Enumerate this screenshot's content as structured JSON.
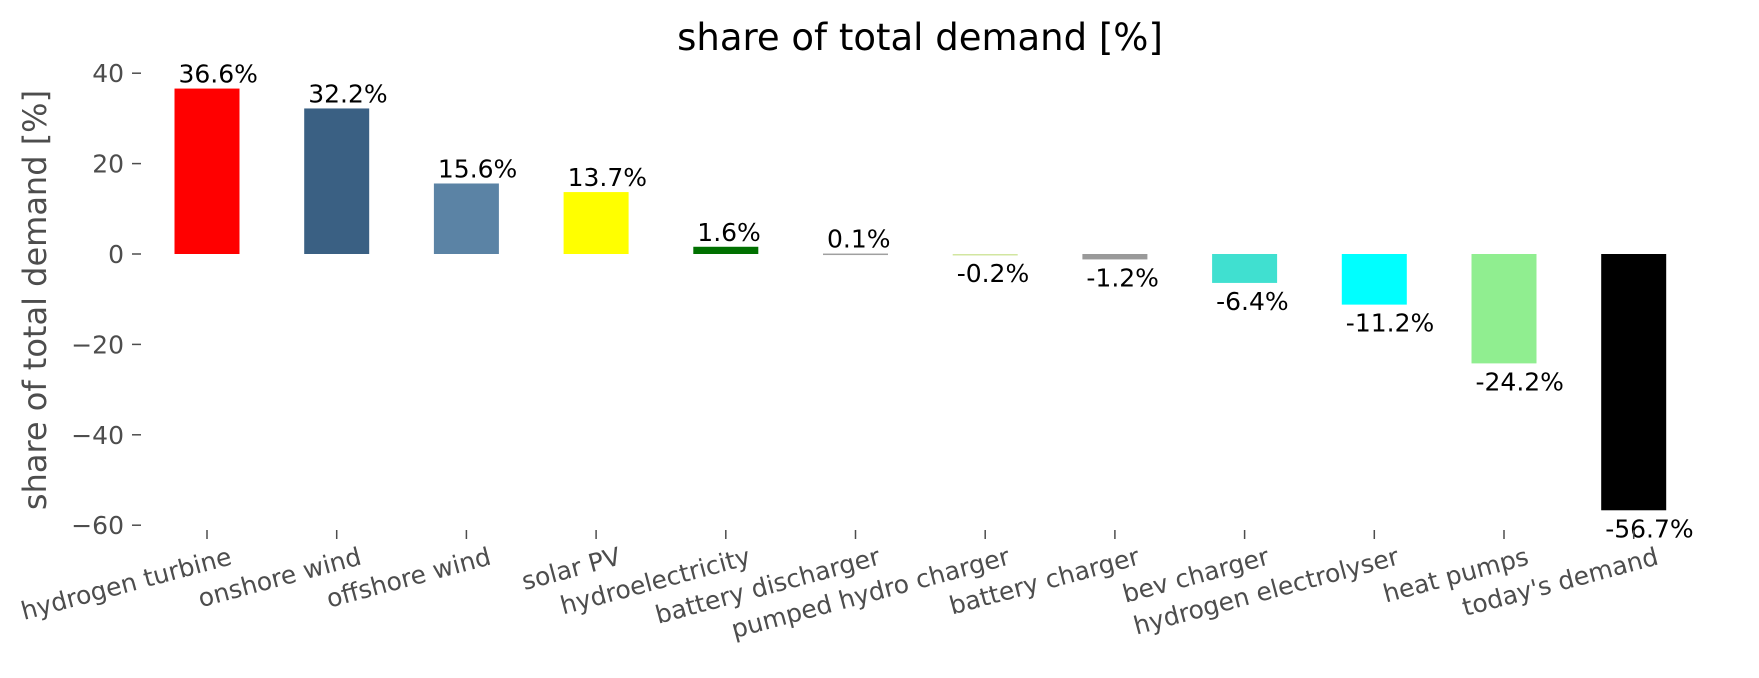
{
  "chart_data": {
    "type": "bar",
    "title": "share of total demand [%]",
    "xlabel": "",
    "ylabel": "share of total demand [%]",
    "ylim": [
      -63,
      43
    ],
    "yticks": [
      40,
      20,
      0,
      -20,
      -40,
      -60
    ],
    "ytick_labels": [
      "40",
      "20",
      "0",
      "−20",
      "−40",
      "−60"
    ],
    "grid": false,
    "categories": [
      "hydrogen turbine",
      "onshore wind",
      "offshore wind",
      "solar PV",
      "hydroelectricity",
      "battery discharger",
      "pumped hydro charger",
      "battery charger",
      "bev charger",
      "hydrogen electrolyser",
      "heat pumps",
      "today's demand"
    ],
    "values": [
      36.6,
      32.2,
      15.6,
      13.7,
      1.6,
      0.1,
      -0.2,
      -1.2,
      -6.4,
      -11.2,
      -24.2,
      -56.7
    ],
    "data_labels": [
      "36.6%",
      "32.2%",
      "15.6%",
      "13.7%",
      "1.6%",
      "0.1%",
      "-0.2%",
      "-1.2%",
      "-6.4%",
      "-11.2%",
      "-24.2%",
      "-56.7%"
    ],
    "colors": [
      "#ff0000",
      "#3a6083",
      "#5b83a5",
      "#ffff00",
      "#007000",
      "#a0a0a0",
      "#d2e6a0",
      "#9a9a9a",
      "#40e0d0",
      "#00ffff",
      "#90ee90",
      "#000000"
    ]
  }
}
